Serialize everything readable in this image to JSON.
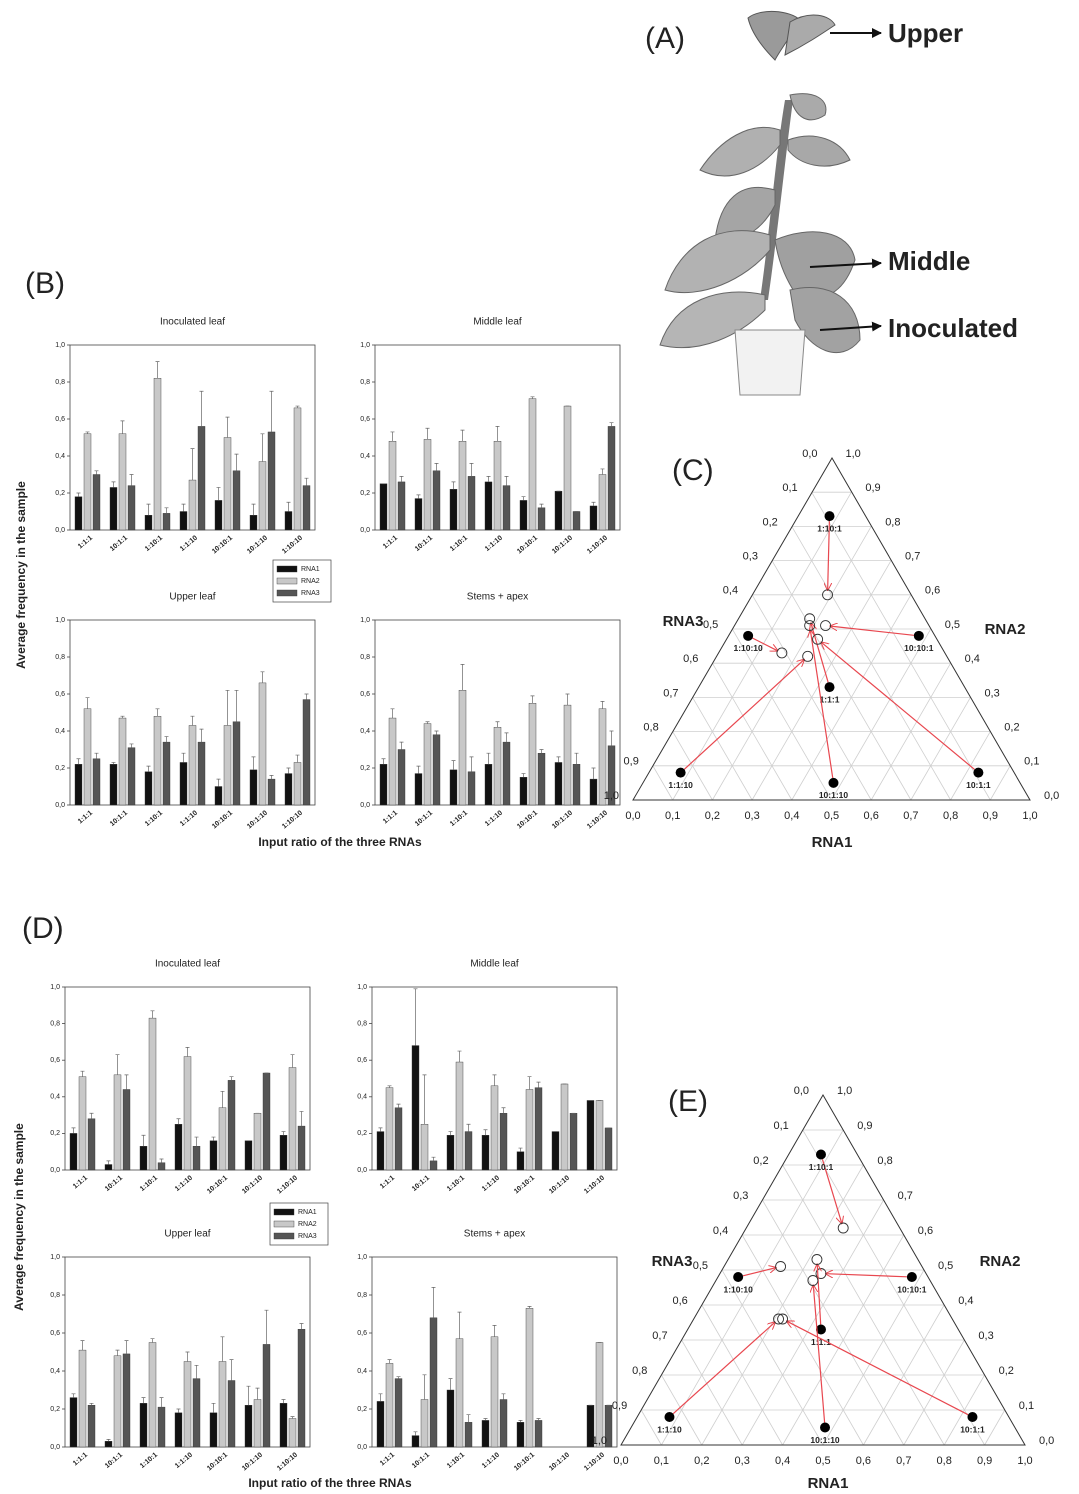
{
  "panel_a": {
    "label": "(A)",
    "annotations": [
      "Upper",
      "Middle",
      "Inoculated"
    ]
  },
  "chart_data": [
    {
      "type": "bar",
      "label": "(B)",
      "ylabel": "Average frequency in the sample",
      "xlabel": "Input ratio of the three RNAs",
      "categories": [
        "1:1:1",
        "10:1:1",
        "1:10:1",
        "1:1:10",
        "10:10:1",
        "10:1:10",
        "1:10:10"
      ],
      "ylim": [
        0,
        1
      ],
      "yticks": [
        {
          "value": 0,
          "label": "0,0"
        },
        {
          "value": 0.2,
          "label": "0,2"
        },
        {
          "value": 0.4,
          "label": "0,4"
        },
        {
          "value": 0.6,
          "label": "0,6"
        },
        {
          "value": 0.8,
          "label": "0,8"
        },
        {
          "value": 1,
          "label": "1,0"
        }
      ],
      "series": [
        {
          "name": "RNA1",
          "color": "#111111"
        },
        {
          "name": "RNA2",
          "color": "#c8c8c8"
        },
        {
          "name": "RNA3",
          "color": "#555555"
        }
      ],
      "subplots": [
        {
          "title": "Inoculated leaf",
          "values": [
            [
              0.18,
              0.23,
              0.08,
              0.1,
              0.16,
              0.08,
              0.1
            ],
            [
              0.52,
              0.52,
              0.82,
              0.27,
              0.5,
              0.37,
              0.66
            ],
            [
              0.3,
              0.24,
              0.09,
              0.56,
              0.32,
              0.53,
              0.24
            ]
          ],
          "errors": [
            [
              0.02,
              0.03,
              0.06,
              0.04,
              0.07,
              0.06,
              0.05
            ],
            [
              0.01,
              0.07,
              0.09,
              0.17,
              0.11,
              0.15,
              0.01
            ],
            [
              0.02,
              0.06,
              0.03,
              0.19,
              0.09,
              0.22,
              0.04
            ]
          ]
        },
        {
          "title": "Middle leaf",
          "values": [
            [
              0.25,
              0.17,
              0.22,
              0.26,
              0.16,
              0.21,
              0.13
            ],
            [
              0.48,
              0.49,
              0.48,
              0.48,
              0.71,
              0.67,
              0.3
            ],
            [
              0.26,
              0.32,
              0.29,
              0.24,
              0.12,
              0.1,
              0.56
            ]
          ],
          "errors": [
            [
              0,
              0.02,
              0.04,
              0.03,
              0.02,
              0,
              0.02
            ],
            [
              0.05,
              0.06,
              0.06,
              0.08,
              0.01,
              0,
              0.03
            ],
            [
              0.03,
              0.04,
              0.07,
              0.05,
              0.02,
              0,
              0.02
            ]
          ]
        },
        {
          "title": "Upper leaf",
          "values": [
            [
              0.22,
              0.22,
              0.18,
              0.23,
              0.1,
              0.19,
              0.17
            ],
            [
              0.52,
              0.47,
              0.48,
              0.43,
              0.43,
              0.66,
              0.23
            ],
            [
              0.25,
              0.31,
              0.34,
              0.34,
              0.45,
              0.14,
              0.57
            ]
          ],
          "errors": [
            [
              0.03,
              0.01,
              0.03,
              0.05,
              0.04,
              0.07,
              0.03
            ],
            [
              0.06,
              0.01,
              0.04,
              0.05,
              0.19,
              0.06,
              0.04
            ],
            [
              0.03,
              0.02,
              0.03,
              0.07,
              0.17,
              0.02,
              0.03
            ]
          ]
        },
        {
          "title": "Stems + apex",
          "values": [
            [
              0.22,
              0.17,
              0.19,
              0.22,
              0.15,
              0.23,
              0.14
            ],
            [
              0.47,
              0.44,
              0.62,
              0.42,
              0.55,
              0.54,
              0.52
            ],
            [
              0.3,
              0.38,
              0.18,
              0.34,
              0.28,
              0.22,
              0.32
            ]
          ],
          "errors": [
            [
              0.03,
              0.04,
              0.05,
              0.06,
              0.02,
              0.03,
              0.06
            ],
            [
              0.05,
              0.01,
              0.14,
              0.03,
              0.04,
              0.06,
              0.04
            ],
            [
              0.04,
              0.02,
              0.08,
              0.05,
              0.02,
              0.06,
              0.08
            ]
          ]
        }
      ]
    },
    {
      "type": "bar",
      "label": "(D)",
      "ylabel": "Average frequency in the sample",
      "xlabel": "Input ratio of the three RNAs",
      "categories": [
        "1:1:1",
        "10:1:1",
        "1:10:1",
        "1:1:10",
        "10:10:1",
        "10:1:10",
        "1:10:10"
      ],
      "ylim": [
        0,
        1
      ],
      "yticks": [
        {
          "value": 0,
          "label": "0,0"
        },
        {
          "value": 0.2,
          "label": "0,2"
        },
        {
          "value": 0.4,
          "label": "0,4"
        },
        {
          "value": 0.6,
          "label": "0,6"
        },
        {
          "value": 0.8,
          "label": "0,8"
        },
        {
          "value": 1,
          "label": "1,0"
        }
      ],
      "series": [
        {
          "name": "RNA1",
          "color": "#111111"
        },
        {
          "name": "RNA2",
          "color": "#c8c8c8"
        },
        {
          "name": "RNA3",
          "color": "#555555"
        }
      ],
      "subplots": [
        {
          "title": "Inoculated leaf",
          "values": [
            [
              0.2,
              0.03,
              0.13,
              0.25,
              0.16,
              0.16,
              0.19
            ],
            [
              0.51,
              0.52,
              0.83,
              0.62,
              0.34,
              0.31,
              0.56
            ],
            [
              0.28,
              0.44,
              0.04,
              0.13,
              0.49,
              0.53,
              0.24
            ]
          ],
          "errors": [
            [
              0.03,
              0.02,
              0.06,
              0.03,
              0.02,
              0,
              0.02
            ],
            [
              0.03,
              0.11,
              0.04,
              0.05,
              0.09,
              0,
              0.07
            ],
            [
              0.03,
              0.08,
              0.02,
              0.05,
              0.02,
              0,
              0.08
            ]
          ]
        },
        {
          "title": "Middle leaf",
          "values": [
            [
              0.21,
              0.68,
              0.19,
              0.19,
              0.1,
              0.21,
              0.38
            ],
            [
              0.45,
              0.25,
              0.59,
              0.46,
              0.44,
              0.47,
              0.38
            ],
            [
              0.34,
              0.05,
              0.21,
              0.31,
              0.45,
              0.31,
              0.23
            ]
          ],
          "errors": [
            [
              0.02,
              0.31,
              0.02,
              0.03,
              0.02,
              0,
              0
            ],
            [
              0.01,
              0.27,
              0.06,
              0.06,
              0.07,
              0,
              0
            ],
            [
              0.02,
              0.02,
              0.04,
              0.03,
              0.03,
              0,
              0
            ]
          ]
        },
        {
          "title": "Upper leaf",
          "values": [
            [
              0.26,
              0.03,
              0.23,
              0.18,
              0.18,
              0.22,
              0.23
            ],
            [
              0.51,
              0.48,
              0.55,
              0.45,
              0.45,
              0.25,
              0.15
            ],
            [
              0.22,
              0.49,
              0.21,
              0.36,
              0.35,
              0.54,
              0.62
            ]
          ],
          "errors": [
            [
              0.02,
              0.01,
              0.03,
              0.02,
              0.05,
              0.1,
              0.02
            ],
            [
              0.05,
              0.03,
              0.02,
              0.05,
              0.13,
              0.06,
              0.01
            ],
            [
              0.01,
              0.07,
              0.05,
              0.07,
              0.11,
              0.18,
              0.03
            ]
          ]
        },
        {
          "title": "Stems + apex",
          "values": [
            [
              0.24,
              0.06,
              0.3,
              0.14,
              0.13,
              null,
              0.22
            ],
            [
              0.44,
              0.25,
              0.57,
              0.58,
              0.73,
              null,
              0.55
            ],
            [
              0.36,
              0.68,
              0.13,
              0.25,
              0.14,
              null,
              0.22
            ]
          ],
          "errors": [
            [
              0.04,
              0.02,
              0.06,
              0.01,
              0.01,
              null,
              0
            ],
            [
              0.02,
              0.13,
              0.14,
              0.06,
              0.01,
              null,
              0
            ],
            [
              0.01,
              0.16,
              0.04,
              0.03,
              0.01,
              null,
              0
            ]
          ]
        }
      ]
    },
    {
      "type": "ternary",
      "label": "(C)",
      "axes": [
        "RNA1",
        "RNA2",
        "RNA3"
      ],
      "ticks": [
        {
          "value": 0,
          "label": "0,0"
        },
        {
          "value": 0.1,
          "label": "0,1"
        },
        {
          "value": 0.2,
          "label": "0,2"
        },
        {
          "value": 0.3,
          "label": "0,3"
        },
        {
          "value": 0.4,
          "label": "0,4"
        },
        {
          "value": 0.5,
          "label": "0,5"
        },
        {
          "value": 0.6,
          "label": "0,6"
        },
        {
          "value": 0.7,
          "label": "0,7"
        },
        {
          "value": 0.8,
          "label": "0,8"
        },
        {
          "value": 0.9,
          "label": "0,9"
        },
        {
          "value": 1,
          "label": "1,0"
        }
      ],
      "arrow_color": "#e8474f",
      "points": [
        {
          "label": "1:10:1",
          "input": [
            0.08,
            0.83,
            0.08
          ],
          "output": [
            0.19,
            0.6,
            0.21
          ]
        },
        {
          "label": "10:10:1",
          "input": [
            0.48,
            0.48,
            0.05
          ],
          "output": [
            0.23,
            0.51,
            0.26
          ]
        },
        {
          "label": "1:10:10",
          "input": [
            0.05,
            0.48,
            0.48
          ],
          "output": [
            0.16,
            0.43,
            0.41
          ]
        },
        {
          "label": "1:1:1",
          "input": [
            0.33,
            0.33,
            0.33
          ],
          "output": [
            0.18,
            0.53,
            0.29
          ]
        },
        {
          "label": "1:1:10",
          "input": [
            0.08,
            0.08,
            0.83
          ],
          "output": [
            0.23,
            0.42,
            0.35
          ]
        },
        {
          "label": "10:1:10",
          "input": [
            0.48,
            0.05,
            0.48
          ],
          "output": [
            0.19,
            0.51,
            0.3
          ]
        },
        {
          "label": "10:1:1",
          "input": [
            0.83,
            0.08,
            0.08
          ],
          "output": [
            0.23,
            0.47,
            0.3
          ]
        }
      ]
    },
    {
      "type": "ternary",
      "label": "(E)",
      "axes": [
        "RNA1",
        "RNA2",
        "RNA3"
      ],
      "ticks": [
        {
          "value": 0,
          "label": "0,0"
        },
        {
          "value": 0.1,
          "label": "0,1"
        },
        {
          "value": 0.2,
          "label": "0,2"
        },
        {
          "value": 0.3,
          "label": "0,3"
        },
        {
          "value": 0.4,
          "label": "0,4"
        },
        {
          "value": 0.5,
          "label": "0,5"
        },
        {
          "value": 0.6,
          "label": "0,6"
        },
        {
          "value": 0.7,
          "label": "0,7"
        },
        {
          "value": 0.8,
          "label": "0,8"
        },
        {
          "value": 0.9,
          "label": "0,9"
        },
        {
          "value": 1,
          "label": "1,0"
        }
      ],
      "arrow_color": "#e8474f",
      "points": [
        {
          "label": "1:10:1",
          "input": [
            0.08,
            0.83,
            0.08
          ],
          "output": [
            0.24,
            0.62,
            0.14
          ]
        },
        {
          "label": "10:10:1",
          "input": [
            0.48,
            0.48,
            0.05
          ],
          "output": [
            0.25,
            0.49,
            0.26
          ]
        },
        {
          "label": "1:10:10",
          "input": [
            0.05,
            0.48,
            0.48
          ],
          "output": [
            0.14,
            0.51,
            0.35
          ]
        },
        {
          "label": "1:1:1",
          "input": [
            0.33,
            0.33,
            0.33
          ],
          "output": [
            0.22,
            0.53,
            0.25
          ]
        },
        {
          "label": "1:1:10",
          "input": [
            0.08,
            0.08,
            0.83
          ],
          "output": [
            0.21,
            0.36,
            0.43
          ]
        },
        {
          "label": "10:1:10",
          "input": [
            0.48,
            0.05,
            0.48
          ],
          "output": [
            0.24,
            0.47,
            0.29
          ]
        },
        {
          "label": "10:1:1",
          "input": [
            0.83,
            0.08,
            0.08
          ],
          "output": [
            0.22,
            0.36,
            0.42
          ]
        }
      ]
    }
  ]
}
